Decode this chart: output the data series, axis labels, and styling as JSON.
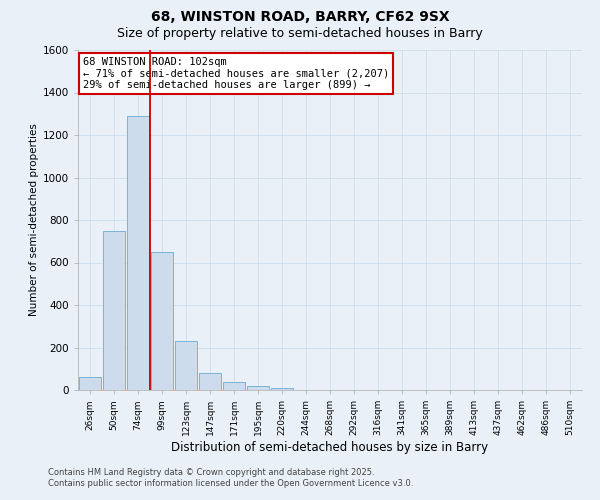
{
  "title": "68, WINSTON ROAD, BARRY, CF62 9SX",
  "subtitle": "Size of property relative to semi-detached houses in Barry",
  "xlabel": "Distribution of semi-detached houses by size in Barry",
  "ylabel": "Number of semi-detached properties",
  "bar_color": "#ccdcec",
  "bar_edge_color": "#6aaad4",
  "categories": [
    "26sqm",
    "50sqm",
    "74sqm",
    "99sqm",
    "123sqm",
    "147sqm",
    "171sqm",
    "195sqm",
    "220sqm",
    "244sqm",
    "268sqm",
    "292sqm",
    "316sqm",
    "341sqm",
    "365sqm",
    "389sqm",
    "413sqm",
    "437sqm",
    "462sqm",
    "486sqm",
    "510sqm"
  ],
  "values": [
    60,
    750,
    1290,
    650,
    230,
    80,
    40,
    20,
    10,
    0,
    0,
    0,
    0,
    0,
    0,
    0,
    0,
    0,
    0,
    0,
    0
  ],
  "red_line_index": 3,
  "annotation_line1": "68 WINSTON ROAD: 102sqm",
  "annotation_line2": "← 71% of semi-detached houses are smaller (2,207)",
  "annotation_line3": "29% of semi-detached houses are larger (899) →",
  "ylim": [
    0,
    1600
  ],
  "yticks": [
    0,
    200,
    400,
    600,
    800,
    1000,
    1200,
    1400,
    1600
  ],
  "grid_color": "#ccddee",
  "background_color": "#eaf0f8",
  "footnote1": "Contains HM Land Registry data © Crown copyright and database right 2025.",
  "footnote2": "Contains public sector information licensed under the Open Government Licence v3.0.",
  "title_fontsize": 10,
  "subtitle_fontsize": 9,
  "annotation_box_color": "#ffffff",
  "annotation_box_edge_color": "#cc0000",
  "red_line_color": "#cc0000"
}
